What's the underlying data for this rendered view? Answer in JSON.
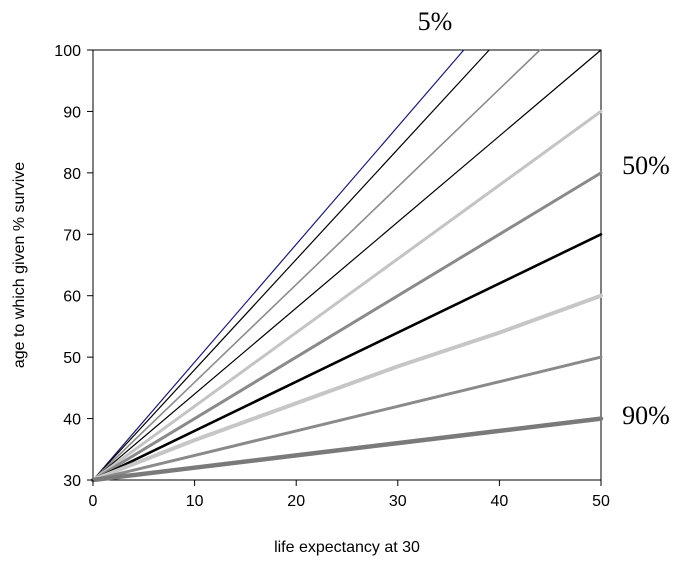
{
  "chart_data": {
    "type": "line",
    "title": "",
    "xlabel": "life expectancy at 30",
    "ylabel": "age to which given % survive",
    "xlim": [
      0,
      50
    ],
    "ylim": [
      30,
      100
    ],
    "xticks": [
      0,
      10,
      20,
      30,
      40,
      50
    ],
    "yticks": [
      30,
      40,
      50,
      60,
      70,
      80,
      90,
      100
    ],
    "grid": false,
    "annotations": [
      {
        "text": "5%",
        "anchor_y": 102
      },
      {
        "text": "50%",
        "anchor_y": 80
      },
      {
        "text": "90%",
        "anchor_y": 40
      }
    ],
    "series": [
      {
        "color": "#1a1a6e",
        "x": [
          0,
          36.5
        ],
        "y": [
          30,
          100
        ]
      },
      {
        "color": "#000000",
        "x": [
          0,
          39
        ],
        "y": [
          30,
          100
        ]
      },
      {
        "color": "#8c8c8c",
        "x": [
          0,
          44
        ],
        "y": [
          30,
          100
        ]
      },
      {
        "color": "#000000",
        "x": [
          0,
          50
        ],
        "y": [
          30,
          100
        ]
      },
      {
        "color": "#c4c4c4",
        "x": [
          0,
          50
        ],
        "y": [
          30,
          90
        ]
      },
      {
        "color": "#8a8a8a",
        "x": [
          0,
          50
        ],
        "y": [
          30,
          80
        ]
      },
      {
        "color": "#000000",
        "x": [
          0,
          50
        ],
        "y": [
          30,
          70
        ]
      },
      {
        "color": "#c6c6c6",
        "x": [
          0,
          10,
          20,
          30,
          40,
          50
        ],
        "y": [
          30,
          36.5,
          42.5,
          48.5,
          54,
          60
        ]
      },
      {
        "color": "#8a8a8a",
        "x": [
          0,
          10,
          20,
          30,
          40,
          50
        ],
        "y": [
          30,
          34,
          38,
          42,
          46,
          50
        ]
      },
      {
        "color": "#7a7a7a",
        "x": [
          0,
          10,
          20,
          30,
          40,
          50
        ],
        "y": [
          30,
          32,
          34,
          36,
          38,
          40
        ]
      }
    ]
  }
}
